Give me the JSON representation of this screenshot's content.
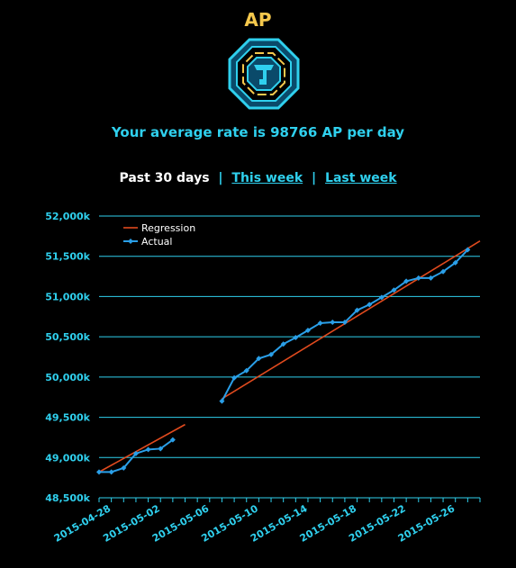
{
  "header": {
    "title": "AP",
    "rate_text": "Your average rate is 98766 AP per day"
  },
  "periods": {
    "current": "Past 30 days",
    "links": [
      "This week",
      "Last week"
    ]
  },
  "colors": {
    "title": "#f5c84c",
    "accent": "#2fd0ee",
    "regression": "#e04a1e",
    "actual": "#2a9fe8"
  },
  "icons": {
    "emblem": "resistance-faction-icon"
  },
  "chart_data": {
    "type": "line",
    "title": "",
    "xlabel": "",
    "ylabel": "",
    "ylim": [
      48500,
      52000
    ],
    "xlim": [
      "2015-04-27",
      "2015-05-28"
    ],
    "grid": true,
    "legend_position": "top-left",
    "y_ticks": [
      "48,500k",
      "49,000k",
      "49,500k",
      "50,000k",
      "50,500k",
      "51,000k",
      "51,500k",
      "52,000k"
    ],
    "x_ticks": [
      "2015-04-28",
      "2015-05-02",
      "2015-05-06",
      "2015-05-10",
      "2015-05-14",
      "2015-05-18",
      "2015-05-22",
      "2015-05-26"
    ],
    "series": [
      {
        "name": "Regression",
        "segments": [
          [
            [
              "2015-04-27",
              48820
            ],
            [
              "2015-05-04",
              49410
            ]
          ],
          [
            [
              "2015-05-07",
              49730
            ],
            [
              "2015-05-28",
              51690
            ]
          ]
        ]
      },
      {
        "name": "Actual",
        "segments": [
          [
            [
              "2015-04-27",
              48820
            ],
            [
              "2015-04-28",
              48820
            ],
            [
              "2015-04-29",
              48870
            ],
            [
              "2015-04-30",
              49050
            ],
            [
              "2015-05-01",
              49100
            ],
            [
              "2015-05-02",
              49110
            ],
            [
              "2015-05-03",
              49220
            ]
          ],
          [
            [
              "2015-05-07",
              49700
            ],
            [
              "2015-05-08",
              49990
            ],
            [
              "2015-05-09",
              50080
            ],
            [
              "2015-05-10",
              50230
            ],
            [
              "2015-05-11",
              50280
            ],
            [
              "2015-05-12",
              50410
            ],
            [
              "2015-05-13",
              50490
            ],
            [
              "2015-05-14",
              50580
            ],
            [
              "2015-05-15",
              50670
            ],
            [
              "2015-05-16",
              50680
            ],
            [
              "2015-05-17",
              50680
            ],
            [
              "2015-05-18",
              50830
            ],
            [
              "2015-05-19",
              50900
            ],
            [
              "2015-05-20",
              50990
            ],
            [
              "2015-05-21",
              51080
            ],
            [
              "2015-05-22",
              51190
            ],
            [
              "2015-05-23",
              51230
            ],
            [
              "2015-05-24",
              51230
            ],
            [
              "2015-05-25",
              51310
            ],
            [
              "2015-05-26",
              51420
            ],
            [
              "2015-05-27",
              51580
            ]
          ]
        ]
      }
    ]
  }
}
